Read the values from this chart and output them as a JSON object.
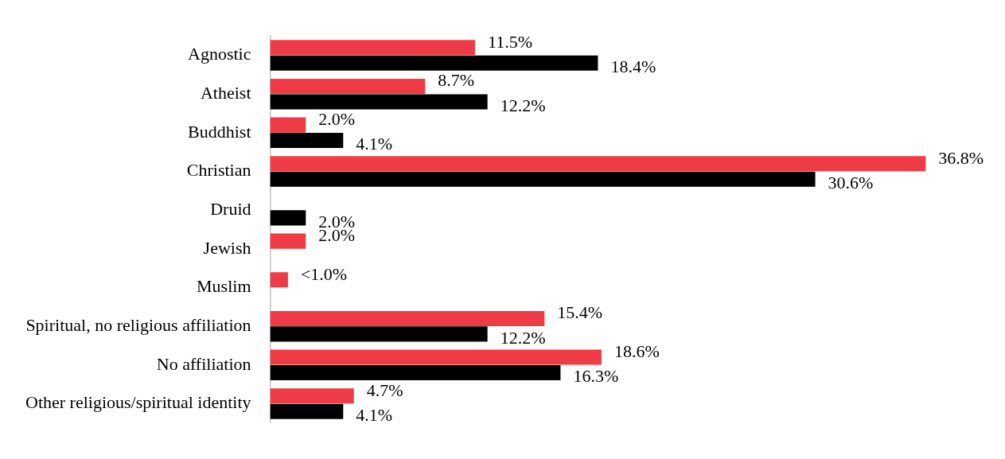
{
  "chart_data": {
    "type": "bar",
    "orientation": "horizontal",
    "categories": [
      "Agnostic",
      "Atheist",
      "Buddhist",
      "Christian",
      "Druid",
      "Jewish",
      "Muslim",
      "Spiritual, no religious affiliation",
      "No affiliation",
      "Other religious/spiritual identity"
    ],
    "series": [
      {
        "color": "#ef3b45",
        "values": [
          11.5,
          8.7,
          2.0,
          36.8,
          null,
          2.0,
          1.0,
          15.4,
          18.6,
          4.7
        ],
        "value_labels": [
          "11.5%",
          "8.7%",
          "2.0%",
          "36.8%",
          null,
          "2.0%",
          "<1.0%",
          "15.4%",
          "18.6%",
          "4.7%"
        ]
      },
      {
        "color": "#000000",
        "values": [
          18.4,
          12.2,
          4.1,
          30.6,
          2.0,
          null,
          null,
          12.2,
          16.3,
          4.1
        ],
        "value_labels": [
          "18.4%",
          "12.2%",
          "4.1%",
          "30.6%",
          "2.0%",
          null,
          null,
          "12.2%",
          "16.3%",
          "4.1%"
        ]
      }
    ],
    "grid": false,
    "tick_labels": "y",
    "legend": false
  }
}
